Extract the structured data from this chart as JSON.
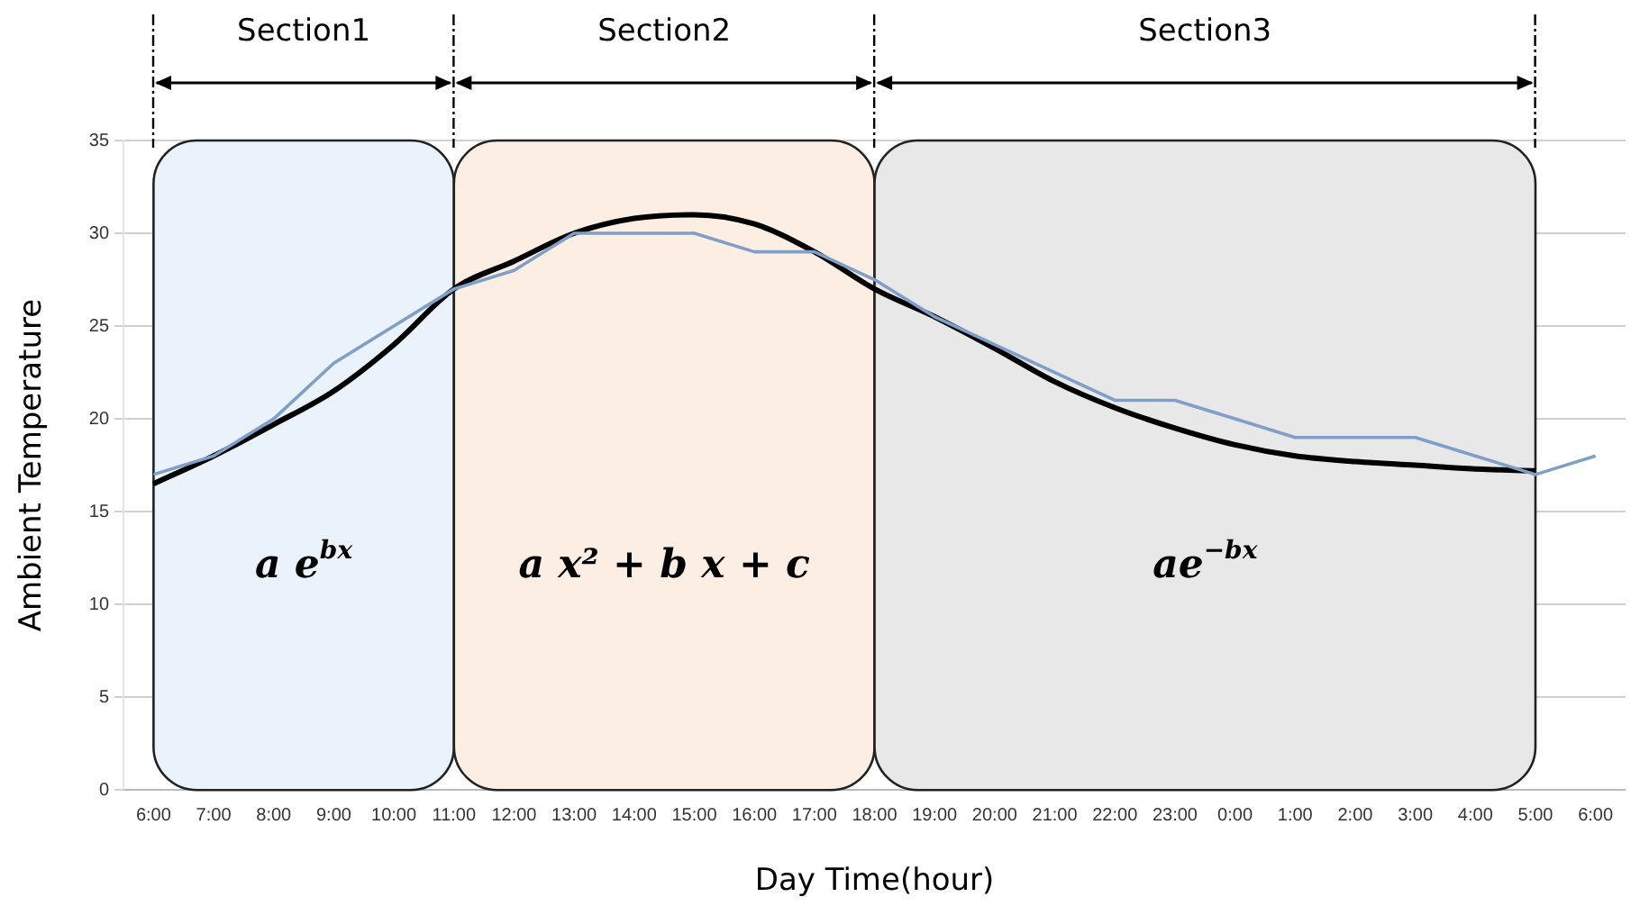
{
  "chart_data": {
    "type": "line",
    "xlabel": "Day Time(hour)",
    "ylabel": "Ambient Temperature",
    "categories": [
      "6:00",
      "7:00",
      "8:00",
      "9:00",
      "10:00",
      "11:00",
      "12:00",
      "13:00",
      "14:00",
      "15:00",
      "16:00",
      "17:00",
      "18:00",
      "19:00",
      "20:00",
      "21:00",
      "22:00",
      "23:00",
      "0:00",
      "1:00",
      "2:00",
      "3:00",
      "4:00",
      "5:00",
      "6:00"
    ],
    "series": [
      {
        "color": "#7f9fc8",
        "values": [
          17,
          18,
          20,
          23,
          25,
          27,
          28,
          30,
          30,
          30,
          29,
          29,
          27.5,
          25.5,
          24,
          22.5,
          21,
          21,
          20,
          19,
          19,
          19,
          18,
          17,
          18
        ]
      },
      {
        "color": "#000000",
        "values": [
          16.5,
          18,
          19.7,
          21.5,
          24,
          27,
          28.5,
          30,
          30.8,
          31,
          30.5,
          29,
          27,
          25.5,
          23.8,
          22,
          20.6,
          19.5,
          18.6,
          18,
          17.7,
          17.5,
          17.3,
          17.2,
          null
        ]
      }
    ],
    "ylim": [
      0,
      35
    ],
    "yticks": [
      0,
      5,
      10,
      15,
      20,
      25,
      30,
      35
    ],
    "grid": "y",
    "legend": false,
    "marker": "none",
    "line_style": "solid",
    "bands": [
      {
        "axis": "x",
        "from": "6:00",
        "to": "11:00",
        "label": "a e$^{bx}$",
        "color": "#eaf2fb"
      },
      {
        "axis": "x",
        "from": "11:00",
        "to": "18:00",
        "label": "a x² + b x + c",
        "color": "#fdeee4"
      },
      {
        "axis": "x",
        "from": "18:00",
        "to": "5:00",
        "label": "ae$^{−bx}$",
        "color": "#e8e8e8"
      }
    ],
    "annotations": [
      "Section1",
      "Section2",
      "Section3"
    ]
  }
}
